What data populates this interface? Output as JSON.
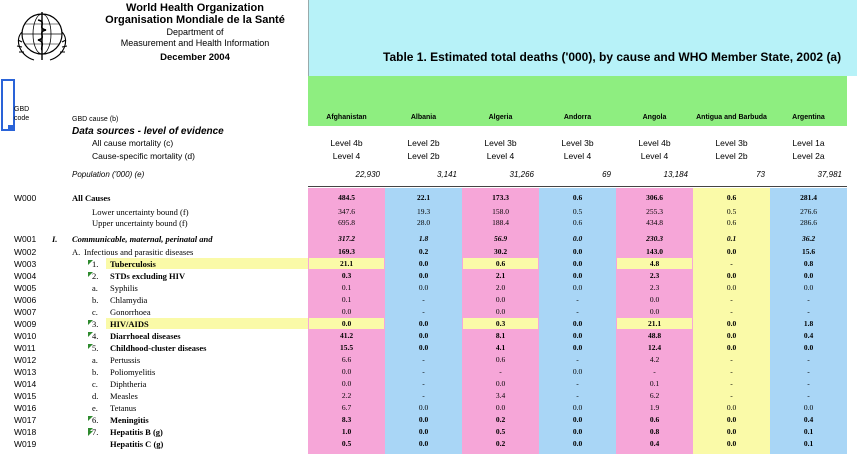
{
  "header": {
    "org_en": "World Health Organization",
    "org_fr": "Organisation Mondiale de la Santé",
    "dept_line1": "Department of",
    "dept_line2": "Measurement and Health Information",
    "date": "December 2004",
    "table_title": "Table 1. Estimated total deaths ('000), by cause and WHO Member State,  2002 (a)"
  },
  "columns": {
    "code_header": "GBD code",
    "cause_header": "GBD cause (b)",
    "countries": [
      "Afghanistan",
      "Albania",
      "Algeria",
      "Andorra",
      "Angola",
      "Antigua and Barbuda",
      "Argentina"
    ]
  },
  "colors": {
    "pink": "#f6a6d8",
    "blue": "#a9d6f6",
    "yellow": "#fafaa8",
    "green": "#8eee80",
    "cyan": "#b7f2f8"
  },
  "data_sources": {
    "title": "Data sources - level of evidence",
    "all_cause_label": "All cause mortality (c)",
    "cause_specific_label": "Cause-specific mortality (d)",
    "population_label": "Population ('000) (e)",
    "all_cause": [
      "Level 4b",
      "Level 2b",
      "Level 3b",
      "Level 3b",
      "Level 4b",
      "Level 3b",
      "Level 1a"
    ],
    "cause_specific": [
      "Level 4",
      "Level 2b",
      "Level 4",
      "Level 4",
      "Level 4",
      "Level 2b",
      "Level 2a"
    ],
    "population": [
      "22,930",
      "3,141",
      "31,266",
      "69",
      "13,184",
      "73",
      "37,981"
    ]
  },
  "rows": [
    {
      "code": "W000",
      "label": "All Causes",
      "values": [
        "484.5",
        "22.1",
        "173.3",
        "0.6",
        "306.6",
        "0.6",
        "281.4"
      ]
    },
    {
      "code": "",
      "label": "Lower uncertainty bound (f)",
      "values": [
        "347.6",
        "19.3",
        "158.0",
        "0.5",
        "255.3",
        "0.5",
        "276.6"
      ]
    },
    {
      "code": "",
      "label": "Upper uncertainty bound (f)",
      "values": [
        "695.8",
        "28.0",
        "188.4",
        "0.6",
        "434.8",
        "0.6",
        "286.6"
      ]
    },
    {
      "code": "W001",
      "roman": "I.",
      "label": "Communicable, maternal, perinatal and",
      "values": [
        "317.2",
        "1.8",
        "56.9",
        "0.0",
        "230.3",
        "0.1",
        "36.2"
      ]
    },
    {
      "code": "W002",
      "letter": "A.",
      "label": "Infectious and parasitic diseases",
      "values": [
        "169.3",
        "0.2",
        "30.2",
        "0.0",
        "143.0",
        "0.0",
        "15.6"
      ]
    },
    {
      "code": "W003",
      "number": "1.",
      "label": "Tuberculosis",
      "values": [
        "21.1",
        "0.0",
        "0.6",
        "0.0",
        "4.8",
        "-",
        "0.8"
      ]
    },
    {
      "code": "W004",
      "number": "2.",
      "label": "STDs excluding HIV",
      "values": [
        "0.3",
        "0.0",
        "2.1",
        "0.0",
        "2.3",
        "0.0",
        "0.0"
      ]
    },
    {
      "code": "W005",
      "sub": "a.",
      "label": "Syphilis",
      "values": [
        "0.1",
        "0.0",
        "2.0",
        "0.0",
        "2.3",
        "0.0",
        "0.0"
      ]
    },
    {
      "code": "W006",
      "sub": "b.",
      "label": "Chlamydia",
      "values": [
        "0.1",
        "-",
        "0.0",
        "-",
        "0.0",
        "-",
        "-"
      ]
    },
    {
      "code": "W007",
      "sub": "c.",
      "label": "Gonorrhoea",
      "values": [
        "0.0",
        "-",
        "0.0",
        "-",
        "0.0",
        "-",
        "-"
      ]
    },
    {
      "code": "W009",
      "number": "3.",
      "label": "HIV/AIDS",
      "values": [
        "0.0",
        "0.0",
        "0.3",
        "0.0",
        "21.1",
        "0.0",
        "1.8"
      ]
    },
    {
      "code": "W010",
      "number": "4.",
      "label": "Diarrhoeal diseases",
      "values": [
        "41.2",
        "0.0",
        "8.1",
        "0.0",
        "48.8",
        "0.0",
        "0.4"
      ]
    },
    {
      "code": "W011",
      "number": "5.",
      "label": "Childhood-cluster diseases",
      "values": [
        "15.5",
        "0.0",
        "4.1",
        "0.0",
        "12.4",
        "0.0",
        "0.0"
      ]
    },
    {
      "code": "W012",
      "sub": "a.",
      "label": "Pertussis",
      "values": [
        "6.6",
        "-",
        "0.6",
        "-",
        "4.2",
        "-",
        "-"
      ]
    },
    {
      "code": "W013",
      "sub": "b.",
      "label": "Poliomyelitis",
      "values": [
        "0.0",
        "-",
        "-",
        "0.0",
        "-",
        "-",
        "-"
      ]
    },
    {
      "code": "W014",
      "sub": "c.",
      "label": "Diphtheria",
      "values": [
        "0.0",
        "-",
        "0.0",
        "-",
        "0.1",
        "-",
        "-"
      ]
    },
    {
      "code": "W015",
      "sub": "d.",
      "label": "Measles",
      "values": [
        "2.2",
        "-",
        "3.4",
        "-",
        "6.2",
        "-",
        "-"
      ]
    },
    {
      "code": "W016",
      "sub": "e.",
      "label": "Tetanus",
      "values": [
        "6.7",
        "0.0",
        "0.0",
        "0.0",
        "1.9",
        "0.0",
        "0.0"
      ]
    },
    {
      "code": "W017",
      "number": "6.",
      "label": "Meningitis",
      "values": [
        "8.3",
        "0.0",
        "0.2",
        "0.0",
        "0.6",
        "0.0",
        "0.4"
      ]
    },
    {
      "code": "W018",
      "number": "7.",
      "label": "Hepatitis B (g)",
      "values": [
        "1.0",
        "0.0",
        "0.5",
        "0.0",
        "0.8",
        "0.0",
        "0.1"
      ]
    },
    {
      "code": "W019",
      "label": "Hepatitis C (g)",
      "values": [
        "0.5",
        "0.0",
        "0.2",
        "0.0",
        "0.4",
        "0.0",
        "0.1"
      ]
    }
  ]
}
